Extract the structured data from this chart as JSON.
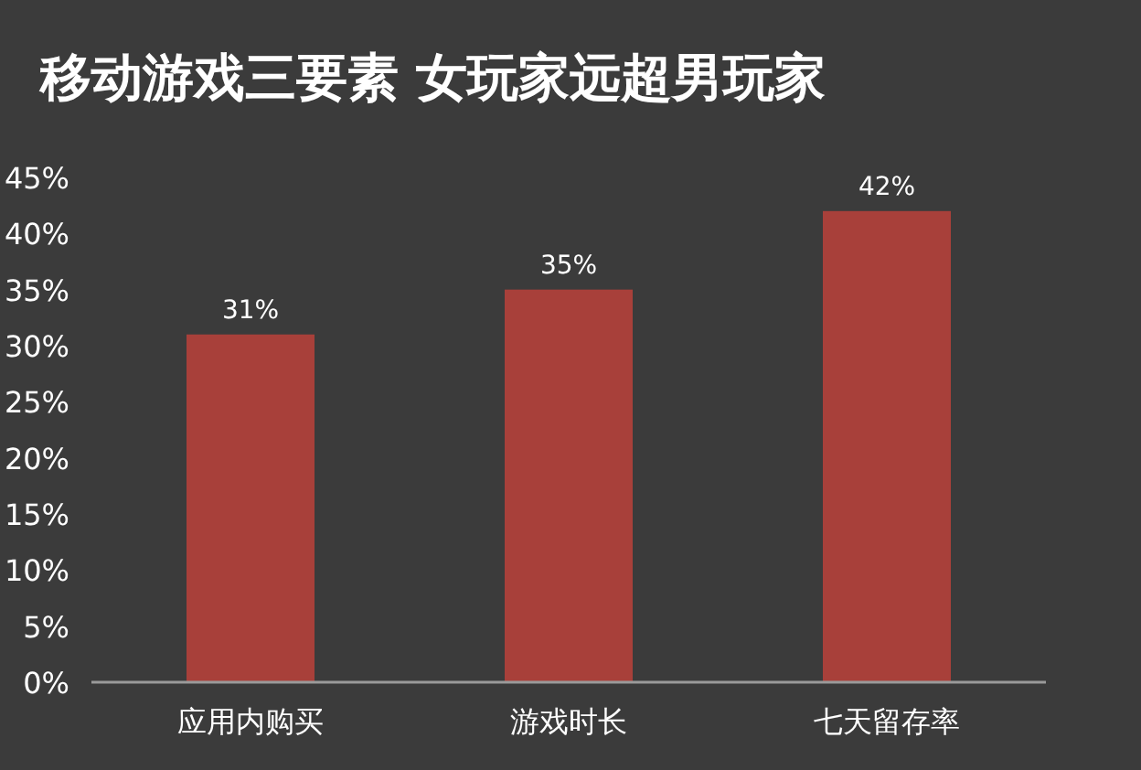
{
  "chart_data": {
    "type": "bar",
    "title": "移动游戏三要素 女玩家远超男玩家",
    "categories": [
      "应用内购买",
      "游戏时长",
      "七天留存率"
    ],
    "values": [
      31,
      35,
      42
    ],
    "value_labels": [
      "31%",
      "35%",
      "42%"
    ],
    "color": "#a8403a",
    "ylim": [
      0,
      45
    ],
    "yticks": [
      {
        "value": 0,
        "label": "0%"
      },
      {
        "value": 5,
        "label": "5%"
      },
      {
        "value": 10,
        "label": "10%"
      },
      {
        "value": 15,
        "label": "15%"
      },
      {
        "value": 20,
        "label": "20%"
      },
      {
        "value": 25,
        "label": "25%"
      },
      {
        "value": 30,
        "label": "30%"
      },
      {
        "value": 35,
        "label": "35%"
      },
      {
        "value": 40,
        "label": "40%"
      },
      {
        "value": 45,
        "label": "45%"
      }
    ],
    "grid": false
  }
}
